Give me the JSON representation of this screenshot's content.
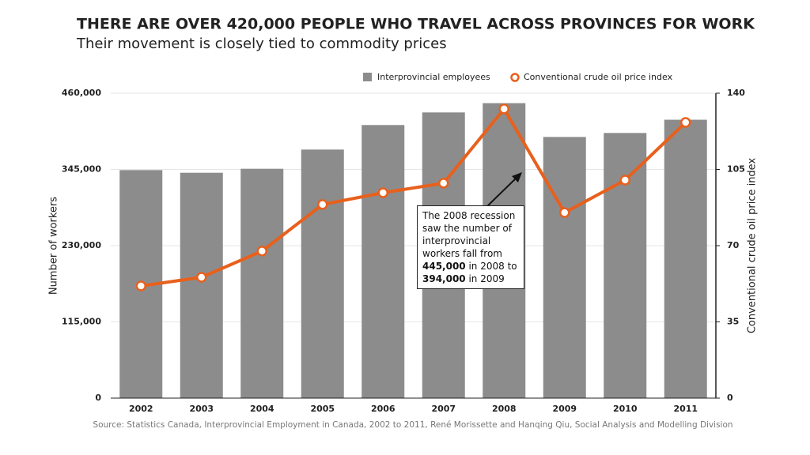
{
  "chart_data": {
    "type": "bar",
    "title": "THERE ARE OVER 420,000 PEOPLE WHO TRAVEL ACROSS PROVINCES FOR WORK",
    "subtitle": "Their movement is closely tied to commodity prices",
    "categories": [
      "2002",
      "2003",
      "2004",
      "2005",
      "2006",
      "2007",
      "2008",
      "2009",
      "2010",
      "2011"
    ],
    "series": [
      {
        "name": "Interprovincial employees",
        "color": "#8c8c8c",
        "values": [
          344000,
          340000,
          346000,
          375000,
          412000,
          431000,
          445000,
          394000,
          400000,
          420000
        ]
      },
      {
        "name": "Conventional crude oil price index",
        "color": "#e8601c",
        "axis": "y2",
        "type": "line",
        "values": [
          51.5,
          55.5,
          67.5,
          88.9,
          94.3,
          98.7,
          132.8,
          85.2,
          100.1,
          126.6
        ]
      }
    ],
    "ylabel": "Number of workers",
    "y2label": "Conventional crude oil price index",
    "ylim": [
      0,
      460000
    ],
    "yticks": [
      0,
      {
        "value": 115000,
        "label": "115,000"
      },
      {
        "value": 230000,
        "label": "230,000"
      },
      {
        "value": 345000,
        "label": "345,000"
      },
      {
        "value": 460000,
        "label": "460,000"
      }
    ],
    "y2lim": [
      0,
      140
    ],
    "y2ticks": [
      0,
      35,
      70,
      105,
      140
    ],
    "grid": true,
    "annotation": [
      "The 2008 recession saw the number of interprovincial workers fall from ",
      "445,000",
      " in 2008 to ",
      "394,000",
      " in 2009"
    ],
    "source": "Source: Statistics Canada, Interprovincial Employment in Canada, 2002 to 2011, René Morissette and Hanqing Qiu, Social Analysis and Modelling Division"
  }
}
